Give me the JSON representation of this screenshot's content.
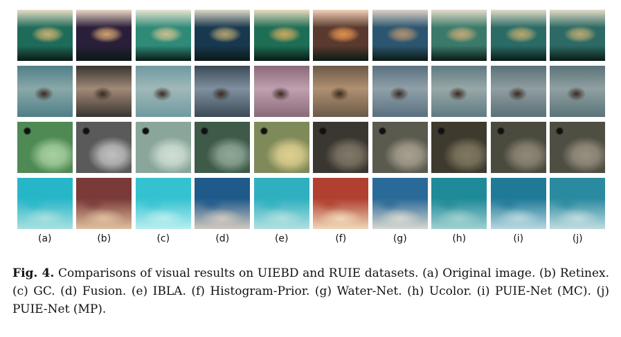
{
  "panel_labels": [
    "(a)",
    "(b)",
    "(c)",
    "(d)",
    "(e)",
    "(f)",
    "(g)",
    "(h)",
    "(i)",
    "(j)"
  ],
  "rows": [
    {
      "scene": "turtle",
      "palette": [
        "#1f6b5a",
        "#2a1f3a",
        "#2f8a78",
        "#17384f",
        "#1e6e55",
        "#5a3a2e",
        "#2c5670",
        "#3a7a6a",
        "#2a6b66",
        "#2d6a66"
      ],
      "accent": [
        "#c5b070",
        "#d0a070",
        "#c8c090",
        "#b0a070",
        "#c8a860",
        "#e09050",
        "#b09070",
        "#c0a878",
        "#b8a870",
        "#b8a870"
      ]
    },
    {
      "scene": "reef",
      "palette": [
        "#4f7f88",
        "#3a3530",
        "#6f9aa0",
        "#3a4a55",
        "#8a6a78",
        "#6a5a48",
        "#5a7080",
        "#5f7a82",
        "#5a7078",
        "#5a7478"
      ],
      "accent": [
        "#8aa8a8",
        "#a08a78",
        "#a0b8b8",
        "#8090a0",
        "#c0a0b0",
        "#b09070",
        "#90a0a8",
        "#98a8a8",
        "#909ea0",
        "#90a0a2"
      ]
    },
    {
      "scene": "rock",
      "palette": [
        "#4f8a55",
        "#5a5a5a",
        "#8aa69a",
        "#3e5a48",
        "#7f8a5a",
        "#3a3630",
        "#5a5a4e",
        "#3e3a2e",
        "#4a4a3e",
        "#4e4e42"
      ],
      "accent": [
        "#a8d0a0",
        "#c0c0c0",
        "#d0ded4",
        "#90a898",
        "#e0d090",
        "#807868",
        "#a8a090",
        "#807860",
        "#908878",
        "#989080"
      ]
    },
    {
      "scene": "sand",
      "palette": [
        "#27b6c8",
        "#7a3a38",
        "#35c2d0",
        "#1e5a8a",
        "#2fb0c0",
        "#b04030",
        "#2a6a98",
        "#1f8a98",
        "#1f7a98",
        "#2a8aa0"
      ],
      "accent": [
        "#a8e0e0",
        "#e0c0a0",
        "#b8eef0",
        "#d0c8c0",
        "#b0e0e0",
        "#f0d8b8",
        "#d8d8d0",
        "#a0d0d0",
        "#b8d8e0",
        "#c0dce0"
      ]
    }
  ],
  "caption": {
    "figure_label": "Fig. 4.",
    "text": "Comparisons of visual results on UIEBD and RUIE datasets. (a) Original image. (b) Retinex. (c) GC. (d) Fusion. (e) IBLA. (f) Histogram-Prior. (g) Water-Net. (h) Ucolor. (i) PUIE-Net (MC). (j) PUIE-Net (MP)."
  }
}
